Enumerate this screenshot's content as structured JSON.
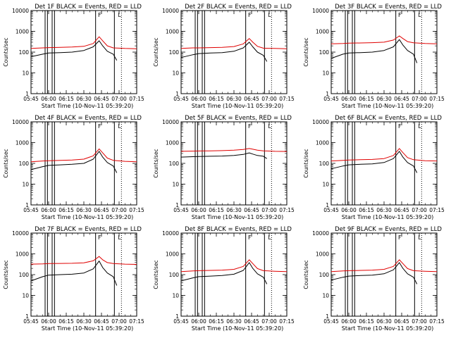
{
  "chart_data": [
    {
      "type": "line",
      "title": "Det 1F BLACK = Events, RED = LLD",
      "xlabel": "Start Time (10-Nov-11 05:39:20)",
      "ylabel": "Counts/sec",
      "yscale": "log",
      "ylim": [
        1,
        10000
      ],
      "xlim": [
        "05:45",
        "07:15"
      ],
      "xticks": [
        "05:45",
        "06:00",
        "06:15",
        "06:30",
        "06:45",
        "07:00",
        "07:15"
      ],
      "yticks": [
        "1",
        "10",
        "100",
        "1000",
        "10000"
      ],
      "grid": false,
      "series": [
        {
          "color": "#000000",
          "x": [
            "05:45",
            "05:55",
            "06:00",
            "06:10",
            "06:20",
            "06:30",
            "06:38",
            "06:43",
            "06:46",
            "06:50",
            "06:55",
            "06:58"
          ],
          "values": [
            60,
            80,
            90,
            95,
            100,
            120,
            180,
            350,
            200,
            110,
            80,
            40
          ]
        },
        {
          "color": "#e00000",
          "x": [
            "05:45",
            "05:55",
            "06:00",
            "06:10",
            "06:20",
            "06:30",
            "06:38",
            "06:43",
            "06:46",
            "06:50",
            "06:55",
            "07:05",
            "07:15"
          ],
          "values": [
            150,
            160,
            165,
            170,
            175,
            190,
            260,
            550,
            350,
            200,
            160,
            150,
            145
          ]
        }
      ]
    },
    {
      "type": "line",
      "title": "Det 2F BLACK = Events, RED = LLD",
      "xlabel": "Start Time (10-Nov-11 05:39:20)",
      "ylabel": "Counts/sec",
      "yscale": "log",
      "ylim": [
        1,
        10000
      ],
      "xlim": [
        "05:45",
        "07:15"
      ],
      "xticks": [
        "05:45",
        "06:00",
        "06:15",
        "06:30",
        "06:45",
        "07:00",
        "07:15"
      ],
      "yticks": [
        "1",
        "10",
        "100",
        "1000",
        "10000"
      ],
      "grid": false,
      "series": [
        {
          "color": "#000000",
          "x": [
            "05:45",
            "05:55",
            "06:00",
            "06:10",
            "06:20",
            "06:30",
            "06:38",
            "06:43",
            "06:46",
            "06:50",
            "06:55",
            "06:58"
          ],
          "values": [
            55,
            75,
            85,
            90,
            95,
            110,
            160,
            300,
            180,
            100,
            70,
            35
          ]
        },
        {
          "color": "#e00000",
          "x": [
            "05:45",
            "05:55",
            "06:00",
            "06:10",
            "06:20",
            "06:30",
            "06:38",
            "06:43",
            "06:46",
            "06:50",
            "06:55",
            "07:05",
            "07:15"
          ],
          "values": [
            150,
            160,
            160,
            165,
            170,
            185,
            250,
            450,
            300,
            190,
            155,
            150,
            145
          ]
        }
      ]
    },
    {
      "type": "line",
      "title": "Det 3F BLACK = Events, RED = LLD",
      "xlabel": "Start Time (10-Nov-11 05:39:20)",
      "ylabel": "Counts/sec",
      "yscale": "log",
      "ylim": [
        1,
        10000
      ],
      "xlim": [
        "05:45",
        "07:15"
      ],
      "xticks": [
        "05:45",
        "06:00",
        "06:15",
        "06:30",
        "06:45",
        "07:00",
        "07:15"
      ],
      "yticks": [
        "1",
        "10",
        "100",
        "1000",
        "10000"
      ],
      "grid": false,
      "series": [
        {
          "color": "#000000",
          "x": [
            "05:45",
            "05:55",
            "06:00",
            "06:10",
            "06:20",
            "06:30",
            "06:38",
            "06:43",
            "06:46",
            "06:50",
            "06:55",
            "06:58"
          ],
          "values": [
            50,
            80,
            90,
            95,
            100,
            120,
            180,
            400,
            220,
            120,
            80,
            30
          ]
        },
        {
          "color": "#e00000",
          "x": [
            "05:45",
            "05:55",
            "06:00",
            "06:10",
            "06:20",
            "06:30",
            "06:38",
            "06:43",
            "06:46",
            "06:50",
            "06:55",
            "07:05",
            "07:15"
          ],
          "values": [
            250,
            260,
            270,
            275,
            285,
            300,
            380,
            600,
            450,
            320,
            280,
            260,
            250
          ]
        }
      ]
    },
    {
      "type": "line",
      "title": "Det 4F BLACK = Events, RED = LLD",
      "xlabel": "Start Time (10-Nov-11 05:39:20)",
      "ylabel": "Counts/sec",
      "yscale": "log",
      "ylim": [
        1,
        10000
      ],
      "xlim": [
        "05:45",
        "07:15"
      ],
      "xticks": [
        "05:45",
        "06:00",
        "06:15",
        "06:30",
        "06:45",
        "07:00",
        "07:15"
      ],
      "yticks": [
        "1",
        "10",
        "100",
        "1000",
        "10000"
      ],
      "grid": false,
      "series": [
        {
          "color": "#000000",
          "x": [
            "05:45",
            "05:55",
            "06:00",
            "06:10",
            "06:20",
            "06:30",
            "06:38",
            "06:43",
            "06:46",
            "06:50",
            "06:55",
            "06:58"
          ],
          "values": [
            50,
            70,
            80,
            85,
            90,
            100,
            160,
            380,
            200,
            110,
            75,
            35
          ]
        },
        {
          "color": "#e00000",
          "x": [
            "05:45",
            "05:55",
            "06:00",
            "06:10",
            "06:20",
            "06:30",
            "06:38",
            "06:43",
            "06:46",
            "06:50",
            "06:55",
            "07:05",
            "07:15"
          ],
          "values": [
            120,
            130,
            135,
            140,
            145,
            160,
            230,
            500,
            320,
            180,
            140,
            125,
            120
          ]
        }
      ]
    },
    {
      "type": "line",
      "title": "Det 5F BLACK = Events, RED = LLD",
      "xlabel": "Start Time (10-Nov-11 05:39:20)",
      "ylabel": "Counts/sec",
      "yscale": "log",
      "ylim": [
        1,
        10000
      ],
      "xlim": [
        "05:45",
        "07:15"
      ],
      "xticks": [
        "05:45",
        "06:00",
        "06:15",
        "06:30",
        "06:45",
        "07:00",
        "07:15"
      ],
      "yticks": [
        "1",
        "10",
        "100",
        "1000",
        "10000"
      ],
      "grid": false,
      "series": [
        {
          "color": "#000000",
          "x": [
            "05:45",
            "05:55",
            "06:00",
            "06:10",
            "06:20",
            "06:30",
            "06:38",
            "06:43",
            "06:46",
            "06:50",
            "06:55",
            "06:58"
          ],
          "values": [
            200,
            210,
            215,
            220,
            225,
            240,
            270,
            320,
            280,
            240,
            220,
            170
          ]
        },
        {
          "color": "#e00000",
          "x": [
            "05:45",
            "05:55",
            "06:00",
            "06:10",
            "06:20",
            "06:30",
            "06:38",
            "06:43",
            "06:46",
            "06:50",
            "06:55",
            "07:05",
            "07:15"
          ],
          "values": [
            380,
            390,
            395,
            400,
            410,
            430,
            470,
            520,
            480,
            430,
            400,
            380,
            375
          ]
        }
      ]
    },
    {
      "type": "line",
      "title": "Det 6F BLACK = Events, RED = LLD",
      "xlabel": "Start Time (10-Nov-11 05:39:20)",
      "ylabel": "Counts/sec",
      "yscale": "log",
      "ylim": [
        1,
        10000
      ],
      "xlim": [
        "05:45",
        "07:15"
      ],
      "xticks": [
        "05:45",
        "06:00",
        "06:15",
        "06:30",
        "06:45",
        "07:00",
        "07:15"
      ],
      "yticks": [
        "1",
        "10",
        "100",
        "1000",
        "10000"
      ],
      "grid": false,
      "series": [
        {
          "color": "#000000",
          "x": [
            "05:45",
            "05:55",
            "06:00",
            "06:10",
            "06:20",
            "06:30",
            "06:38",
            "06:43",
            "06:46",
            "06:50",
            "06:55",
            "06:58"
          ],
          "values": [
            55,
            75,
            85,
            90,
            95,
            110,
            170,
            380,
            200,
            110,
            75,
            35
          ]
        },
        {
          "color": "#e00000",
          "x": [
            "05:45",
            "05:55",
            "06:00",
            "06:10",
            "06:20",
            "06:30",
            "06:38",
            "06:43",
            "06:46",
            "06:50",
            "06:55",
            "07:05",
            "07:15"
          ],
          "values": [
            130,
            140,
            145,
            150,
            155,
            170,
            240,
            520,
            330,
            190,
            150,
            135,
            130
          ]
        }
      ]
    },
    {
      "type": "line",
      "title": "Det 7F BLACK = Events, RED = LLD",
      "xlabel": "Start Time (10-Nov-11 05:39:20)",
      "ylabel": "Counts/sec",
      "yscale": "log",
      "ylim": [
        1,
        10000
      ],
      "xlim": [
        "05:45",
        "07:15"
      ],
      "xticks": [
        "05:45",
        "06:00",
        "06:15",
        "06:30",
        "06:45",
        "07:00",
        "07:15"
      ],
      "yticks": [
        "1",
        "10",
        "100",
        "1000",
        "10000"
      ],
      "grid": false,
      "series": [
        {
          "color": "#000000",
          "x": [
            "05:45",
            "05:55",
            "06:00",
            "06:10",
            "06:20",
            "06:30",
            "06:38",
            "06:43",
            "06:46",
            "06:50",
            "06:55",
            "06:58"
          ],
          "values": [
            50,
            80,
            95,
            100,
            105,
            120,
            190,
            450,
            220,
            120,
            80,
            30
          ]
        },
        {
          "color": "#e00000",
          "x": [
            "05:45",
            "05:55",
            "06:00",
            "06:10",
            "06:20",
            "06:30",
            "06:38",
            "06:43",
            "06:46",
            "06:50",
            "06:55",
            "07:05",
            "07:15"
          ],
          "values": [
            320,
            330,
            340,
            345,
            350,
            370,
            460,
            750,
            520,
            380,
            340,
            320,
            310
          ]
        }
      ]
    },
    {
      "type": "line",
      "title": "Det 8F BLACK = Events, RED = LLD",
      "xlabel": "Start Time (10-Nov-11 05:39:20)",
      "ylabel": "Counts/sec",
      "yscale": "log",
      "ylim": [
        1,
        10000
      ],
      "xlim": [
        "05:45",
        "07:15"
      ],
      "xticks": [
        "05:45",
        "06:00",
        "06:15",
        "06:30",
        "06:45",
        "07:00",
        "07:15"
      ],
      "yticks": [
        "1",
        "10",
        "100",
        "1000",
        "10000"
      ],
      "grid": false,
      "series": [
        {
          "color": "#000000",
          "x": [
            "05:45",
            "05:55",
            "06:00",
            "06:10",
            "06:20",
            "06:30",
            "06:38",
            "06:43",
            "06:46",
            "06:50",
            "06:55",
            "06:58"
          ],
          "values": [
            50,
            70,
            80,
            85,
            90,
            105,
            160,
            380,
            200,
            110,
            75,
            35
          ]
        },
        {
          "color": "#e00000",
          "x": [
            "05:45",
            "05:55",
            "06:00",
            "06:10",
            "06:20",
            "06:30",
            "06:38",
            "06:43",
            "06:46",
            "06:50",
            "06:55",
            "07:05",
            "07:15"
          ],
          "values": [
            140,
            150,
            155,
            160,
            165,
            180,
            250,
            520,
            340,
            195,
            155,
            145,
            140
          ]
        }
      ]
    },
    {
      "type": "line",
      "title": "Det 9F BLACK = Events, RED = LLD",
      "xlabel": "Start Time (10-Nov-11 05:39:20)",
      "ylabel": "Counts/sec",
      "yscale": "log",
      "ylim": [
        1,
        10000
      ],
      "xlim": [
        "05:45",
        "07:15"
      ],
      "xticks": [
        "05:45",
        "06:00",
        "06:15",
        "06:30",
        "06:45",
        "07:00",
        "07:15"
      ],
      "yticks": [
        "1",
        "10",
        "100",
        "1000",
        "10000"
      ],
      "grid": false,
      "series": [
        {
          "color": "#000000",
          "x": [
            "05:45",
            "05:55",
            "06:00",
            "06:10",
            "06:20",
            "06:30",
            "06:38",
            "06:43",
            "06:46",
            "06:50",
            "06:55",
            "06:58"
          ],
          "values": [
            55,
            75,
            85,
            90,
            95,
            110,
            170,
            380,
            200,
            110,
            75,
            35
          ]
        },
        {
          "color": "#e00000",
          "x": [
            "05:45",
            "05:55",
            "06:00",
            "06:10",
            "06:20",
            "06:30",
            "06:38",
            "06:43",
            "06:46",
            "06:50",
            "06:55",
            "07:05",
            "07:15"
          ],
          "values": [
            140,
            150,
            155,
            160,
            165,
            180,
            250,
            520,
            340,
            195,
            155,
            145,
            140
          ]
        }
      ]
    }
  ],
  "markers": {
    "solid": [
      "05:57",
      "05:59",
      "06:03",
      "06:05",
      "06:40",
      "06:56"
    ],
    "dotted": [
      "07:02"
    ],
    "label_a": "F",
    "label_b": "L",
    "label_a_at": "06:42",
    "label_b_at": "06:59"
  }
}
